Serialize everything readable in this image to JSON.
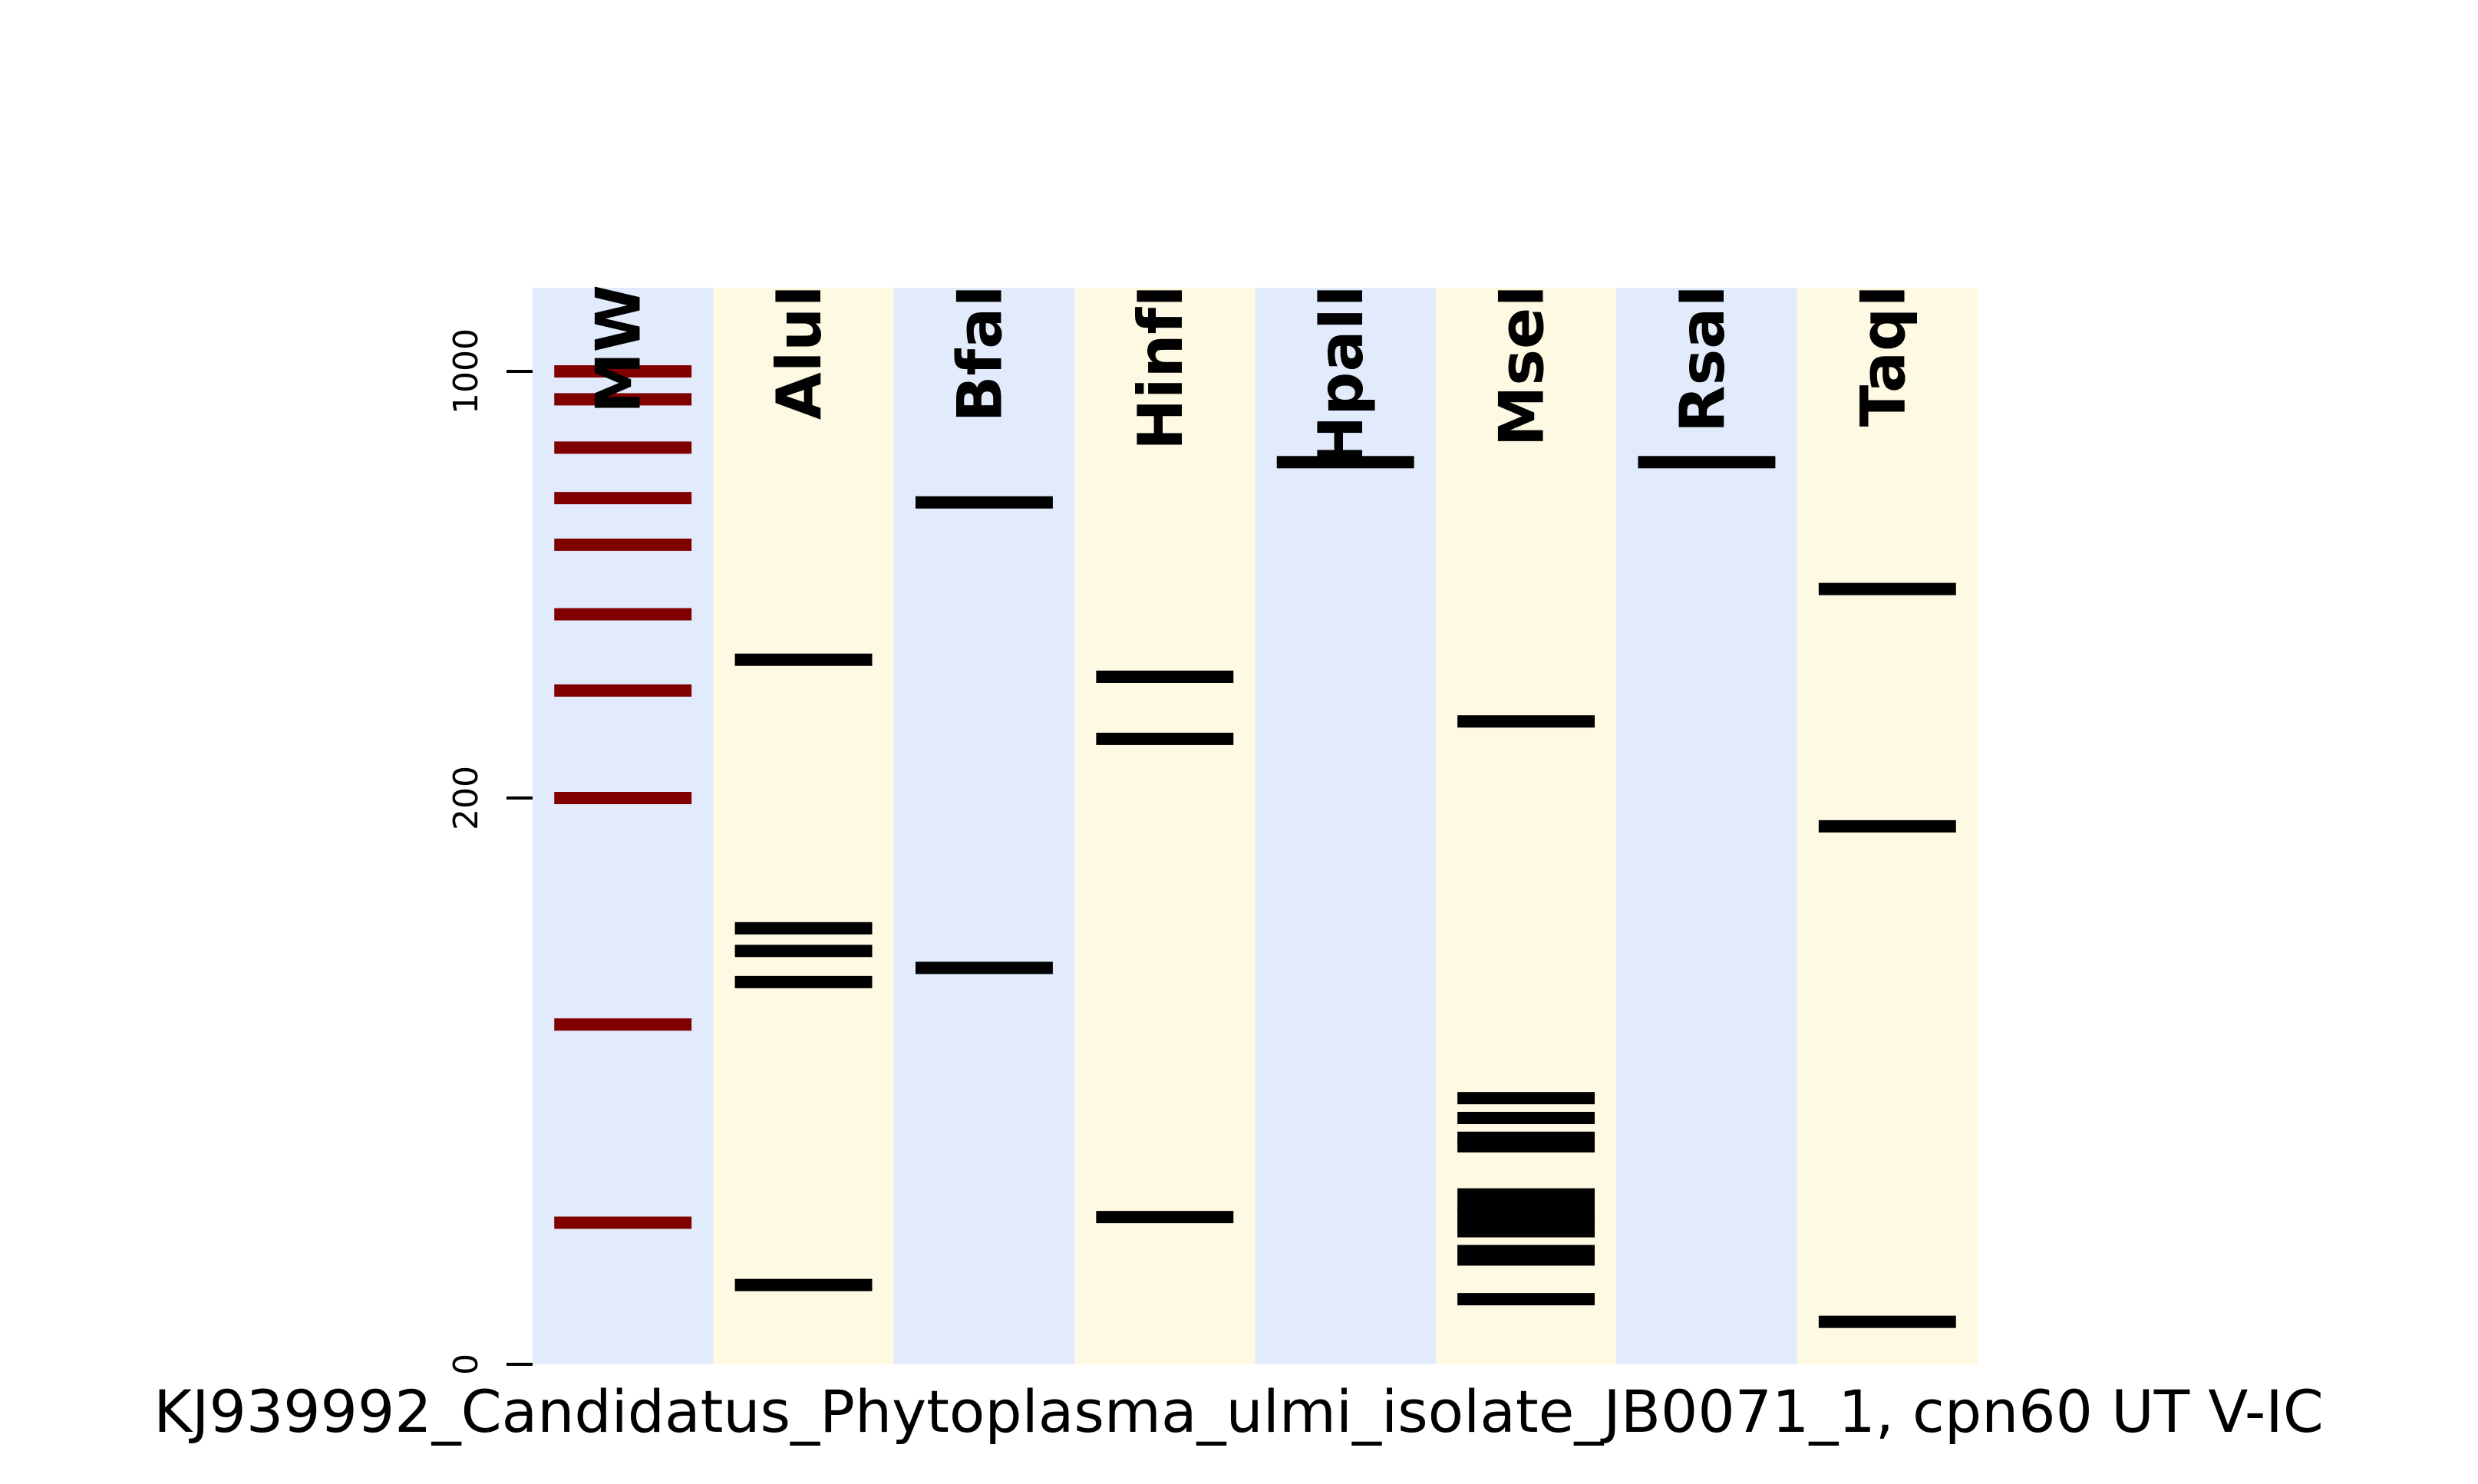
{
  "chart_data": {
    "type": "gel",
    "title": "",
    "xlabel": "KJ939992_Candidatus_Phytoplasma_ulmi_isolate_JB0071_1, cpn60 UT V-IC",
    "ylabel": "",
    "yticks": [
      "1000",
      "200",
      "0"
    ],
    "lanes": [
      {
        "name": "MW",
        "bands": [
          1000,
          900,
          750,
          620,
          520,
          400,
          300,
          200,
          120,
          50
        ],
        "band_color": "#800000",
        "background": "#e1ebfb"
      },
      {
        "name": "AluI",
        "bands": [
          337,
          154,
          146,
          135,
          28
        ],
        "band_color": "#000000",
        "background": "#fdf9e3"
      },
      {
        "name": "BfaI",
        "bands": [
          610,
          140
        ],
        "band_color": "#000000",
        "background": "#e1ebfb"
      },
      {
        "name": "HinfI",
        "bands": [
          316,
          250,
          52
        ],
        "band_color": "#000000",
        "background": "#fdf9e3"
      },
      {
        "name": "HpaII",
        "bands": [
          710
        ],
        "band_color": "#000000",
        "background": "#e1ebfb"
      },
      {
        "name": "MseI",
        "bands": [
          267,
          94,
          87,
          80,
          77,
          60,
          56,
          53,
          50,
          47,
          40,
          37,
          23
        ],
        "band_color": "#000000",
        "background": "#fdf9e3"
      },
      {
        "name": "RsaI",
        "bands": [
          710
        ],
        "band_color": "#000000",
        "background": "#e1ebfb"
      },
      {
        "name": "TaqI",
        "bands": [
          440,
          190,
          15
        ],
        "band_color": "#000000",
        "background": "#fdf9e3"
      }
    ]
  }
}
